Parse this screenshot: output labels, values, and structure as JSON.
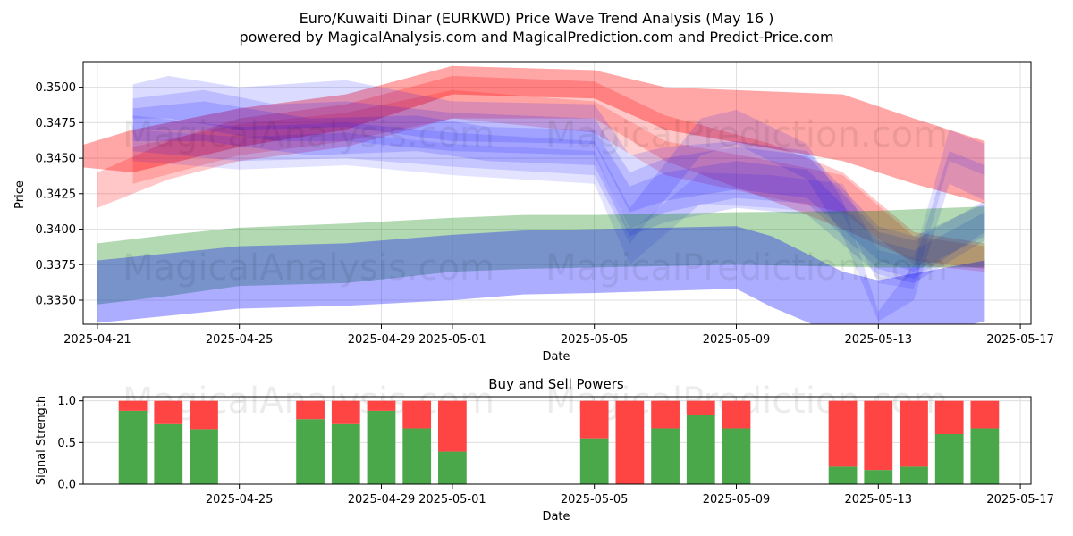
{
  "title_line1": "Euro/Kuwaiti Dinar (EURKWD) Price Wave Trend Analysis (May 16 )",
  "title_line2": "powered by MagicalAnalysis.com and MagicalPrediction.com and Predict-Price.com",
  "watermarks": [
    "MagicalAnalysis.com",
    "MagicalPrediction.com"
  ],
  "colors": {
    "red": "#ff0000",
    "blue": "#0000ff",
    "green": "#008000",
    "bar_buy": "#4aa84a",
    "bar_sell": "#ff4444",
    "grid": "#d9d9d9"
  },
  "chart_data": [
    {
      "type": "area",
      "title": "",
      "xlabel": "Date",
      "ylabel": "Price",
      "xlim": [
        "2025-04-21",
        "2025-05-17"
      ],
      "ylim": [
        0.3333,
        0.3518
      ],
      "x_ticks": [
        "2025-04-21",
        "2025-04-25",
        "2025-04-29",
        "2025-05-01",
        "2025-05-05",
        "2025-05-09",
        "2025-05-13",
        "2025-05-17"
      ],
      "y_ticks": [
        "0.3350",
        "0.3375",
        "0.3400",
        "0.3425",
        "0.3450",
        "0.3475",
        "0.3500"
      ],
      "grid": true,
      "bands": [
        {
          "color": "red",
          "opacity": 0.35,
          "x": [
            "2025-04-20",
            "2025-04-22",
            "2025-04-25",
            "2025-04-28",
            "2025-05-01",
            "2025-05-05",
            "2025-05-07",
            "2025-05-12",
            "2025-05-14",
            "2025-05-16"
          ],
          "upper": [
            0.3455,
            0.347,
            0.3485,
            0.3495,
            0.3515,
            0.3512,
            0.35,
            0.3495,
            0.3478,
            0.3462
          ],
          "lower": [
            0.3445,
            0.344,
            0.3458,
            0.347,
            0.3495,
            0.3492,
            0.347,
            0.3448,
            0.3432,
            0.3418
          ]
        },
        {
          "color": "red",
          "opacity": 0.22,
          "x": [
            "2025-04-21",
            "2025-04-23",
            "2025-04-25",
            "2025-04-28",
            "2025-05-01",
            "2025-05-05",
            "2025-05-07",
            "2025-05-10",
            "2025-05-12",
            "2025-05-14",
            "2025-05-16"
          ],
          "upper": [
            0.344,
            0.3462,
            0.3478,
            0.3488,
            0.3508,
            0.3504,
            0.348,
            0.346,
            0.344,
            0.3398,
            0.339
          ],
          "lower": [
            0.3415,
            0.3435,
            0.3448,
            0.3458,
            0.3478,
            0.3478,
            0.3448,
            0.342,
            0.34,
            0.3378,
            0.3372
          ]
        },
        {
          "color": "red",
          "opacity": 0.18,
          "x": [
            "2025-04-22",
            "2025-04-25",
            "2025-04-28",
            "2025-05-01",
            "2025-05-05",
            "2025-05-07",
            "2025-05-10",
            "2025-05-12",
            "2025-05-14",
            "2025-05-16"
          ],
          "upper": [
            0.3458,
            0.3474,
            0.3482,
            0.3498,
            0.349,
            0.3462,
            0.3448,
            0.3438,
            0.3395,
            0.3388
          ],
          "lower": [
            0.3432,
            0.3452,
            0.3462,
            0.3478,
            0.3468,
            0.3438,
            0.3422,
            0.3412,
            0.3375,
            0.337
          ]
        },
        {
          "color": "blue",
          "opacity": 0.14,
          "x": [
            "2025-04-22",
            "2025-04-23",
            "2025-04-25",
            "2025-04-28",
            "2025-05-01",
            "2025-05-05",
            "2025-05-06",
            "2025-05-07",
            "2025-05-09",
            "2025-05-11",
            "2025-05-13",
            "2025-05-14",
            "2025-05-16"
          ],
          "upper": [
            0.3502,
            0.3508,
            0.35,
            0.3505,
            0.349,
            0.3488,
            0.3452,
            0.3458,
            0.3462,
            0.3455,
            0.3402,
            0.3395,
            0.3418
          ],
          "lower": [
            0.3478,
            0.3478,
            0.347,
            0.3472,
            0.3462,
            0.346,
            0.3412,
            0.342,
            0.3428,
            0.3422,
            0.3378,
            0.337,
            0.3395
          ]
        },
        {
          "color": "blue",
          "opacity": 0.14,
          "x": [
            "2025-04-22",
            "2025-04-24",
            "2025-04-26",
            "2025-04-28",
            "2025-05-01",
            "2025-05-05",
            "2025-05-06",
            "2025-05-07",
            "2025-05-09",
            "2025-05-11",
            "2025-05-13",
            "2025-05-14",
            "2025-05-16"
          ],
          "upper": [
            0.3492,
            0.3498,
            0.3488,
            0.349,
            0.3482,
            0.3478,
            0.344,
            0.345,
            0.3458,
            0.3452,
            0.3398,
            0.3392,
            0.342
          ],
          "lower": [
            0.347,
            0.347,
            0.3462,
            0.3462,
            0.3455,
            0.3452,
            0.34,
            0.3412,
            0.3422,
            0.3418,
            0.3372,
            0.3365,
            0.3398
          ]
        },
        {
          "color": "blue",
          "opacity": 0.14,
          "x": [
            "2025-04-22",
            "2025-04-24",
            "2025-04-27",
            "2025-04-30",
            "2025-05-02",
            "2025-05-05",
            "2025-05-06",
            "2025-05-07",
            "2025-05-09",
            "2025-05-11",
            "2025-05-13",
            "2025-05-14",
            "2025-05-16"
          ],
          "upper": [
            0.3485,
            0.349,
            0.3478,
            0.348,
            0.3472,
            0.347,
            0.343,
            0.344,
            0.3448,
            0.3442,
            0.3392,
            0.3385,
            0.3412
          ],
          "lower": [
            0.3462,
            0.3462,
            0.3452,
            0.3455,
            0.3448,
            0.3445,
            0.3395,
            0.3405,
            0.3415,
            0.341,
            0.3368,
            0.3362,
            0.3392
          ]
        },
        {
          "color": "blue",
          "opacity": 0.13,
          "x": [
            "2025-04-22",
            "2025-04-25",
            "2025-04-28",
            "2025-05-01",
            "2025-05-05",
            "2025-05-06",
            "2025-05-08",
            "2025-05-09",
            "2025-05-11",
            "2025-05-12",
            "2025-05-13",
            "2025-05-14",
            "2025-05-15",
            "2025-05-16"
          ],
          "upper": [
            0.348,
            0.3472,
            0.3475,
            0.3468,
            0.3462,
            0.3415,
            0.3478,
            0.3484,
            0.346,
            0.342,
            0.3342,
            0.3375,
            0.3455,
            0.3445
          ],
          "lower": [
            0.3455,
            0.3448,
            0.345,
            0.3444,
            0.3438,
            0.339,
            0.3452,
            0.346,
            0.3435,
            0.3395,
            0.3335,
            0.335,
            0.3432,
            0.342
          ]
        },
        {
          "color": "blue",
          "opacity": 0.11,
          "x": [
            "2025-04-22",
            "2025-04-25",
            "2025-04-28",
            "2025-05-01",
            "2025-05-05",
            "2025-05-06",
            "2025-05-08",
            "2025-05-10",
            "2025-05-12",
            "2025-05-13",
            "2025-05-14",
            "2025-05-15",
            "2025-05-16"
          ],
          "upper": [
            0.347,
            0.3465,
            0.3468,
            0.346,
            0.3455,
            0.3398,
            0.344,
            0.3438,
            0.3432,
            0.3385,
            0.338,
            0.347,
            0.346
          ],
          "lower": [
            0.3448,
            0.3442,
            0.3445,
            0.3438,
            0.3432,
            0.3375,
            0.3418,
            0.3415,
            0.341,
            0.3362,
            0.3358,
            0.3448,
            0.3438
          ]
        },
        {
          "color": "green",
          "opacity": 0.3,
          "x": [
            "2025-04-21",
            "2025-04-23",
            "2025-04-25",
            "2025-04-28",
            "2025-05-01",
            "2025-05-03",
            "2025-05-05",
            "2025-05-09",
            "2025-05-13",
            "2025-05-16"
          ],
          "upper": [
            0.339,
            0.3396,
            0.3401,
            0.3404,
            0.3408,
            0.341,
            0.341,
            0.3412,
            0.3413,
            0.3416
          ],
          "lower": [
            0.3347,
            0.3353,
            0.336,
            0.3362,
            0.337,
            0.3372,
            0.3373,
            0.3375,
            0.3373,
            0.3373
          ]
        },
        {
          "color": "blue",
          "opacity": 0.32,
          "x": [
            "2025-04-21",
            "2025-04-25",
            "2025-04-28",
            "2025-05-01",
            "2025-05-03",
            "2025-05-05",
            "2025-05-09",
            "2025-05-10",
            "2025-05-12",
            "2025-05-13",
            "2025-05-16"
          ],
          "upper": [
            0.3378,
            0.3388,
            0.339,
            0.3396,
            0.3399,
            0.34,
            0.3402,
            0.3395,
            0.337,
            0.3364,
            0.3378
          ],
          "lower": [
            0.3334,
            0.3344,
            0.3346,
            0.335,
            0.3354,
            0.3355,
            0.3358,
            0.3345,
            0.3324,
            0.3318,
            0.3335
          ]
        }
      ]
    },
    {
      "type": "bar",
      "title": "Buy and Sell Powers",
      "xlabel": "Date",
      "ylabel": "Signal Strength",
      "ylim": [
        0,
        1.05
      ],
      "y_ticks": [
        "0.0",
        "0.5",
        "1.0"
      ],
      "x_ticks": [
        "2025-04-25",
        "2025-04-29",
        "2025-05-01",
        "2025-05-05",
        "2025-05-09",
        "2025-05-13",
        "2025-05-17"
      ],
      "grid": true,
      "categories": [
        "2025-04-22",
        "2025-04-23",
        "2025-04-24",
        "2025-04-27",
        "2025-04-28",
        "2025-04-29",
        "2025-04-30",
        "2025-05-01",
        "2025-05-05",
        "2025-05-06",
        "2025-05-07",
        "2025-05-08",
        "2025-05-09",
        "2025-05-12",
        "2025-05-13",
        "2025-05-14",
        "2025-05-15",
        "2025-05-16"
      ],
      "series": [
        {
          "name": "",
          "color": "bar_buy",
          "values": [
            0.88,
            0.72,
            0.66,
            0.78,
            0.72,
            0.88,
            0.67,
            0.39,
            0.55,
            0.0,
            0.67,
            0.83,
            0.67,
            0.21,
            0.17,
            0.21,
            0.6,
            0.67
          ]
        },
        {
          "name": "",
          "color": "bar_sell",
          "values": [
            0.12,
            0.28,
            0.34,
            0.22,
            0.28,
            0.12,
            0.33,
            0.61,
            0.45,
            1.0,
            0.33,
            0.17,
            0.33,
            0.79,
            0.83,
            0.79,
            0.4,
            0.33
          ]
        }
      ]
    }
  ]
}
